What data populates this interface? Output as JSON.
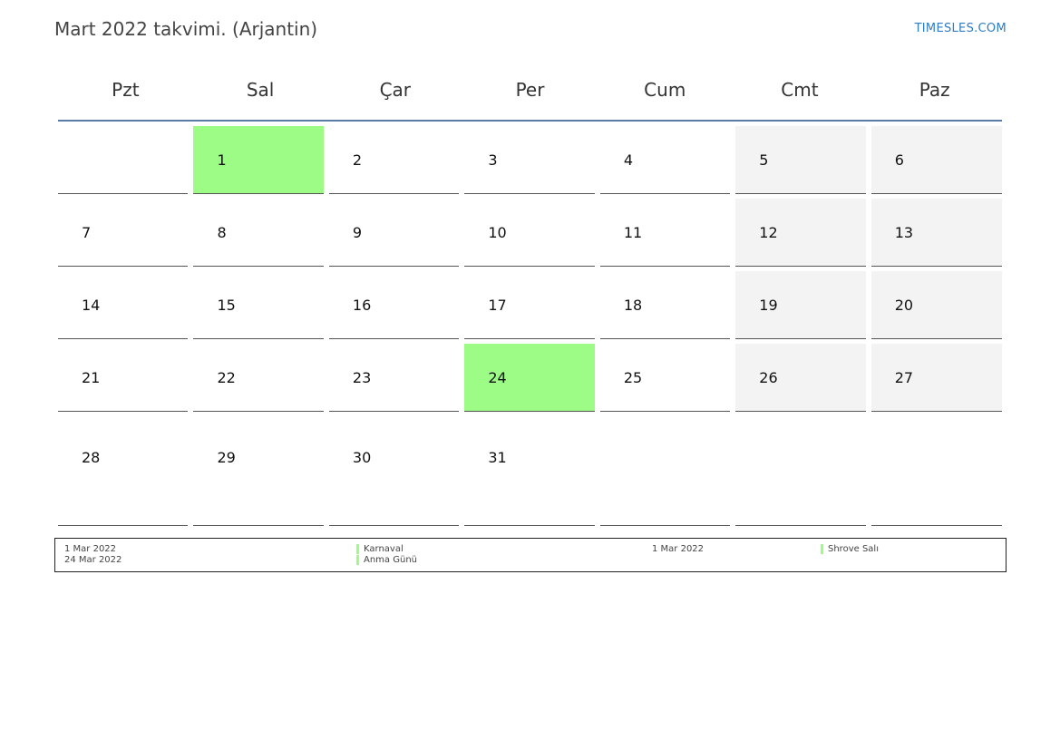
{
  "header": {
    "title": "Mart 2022 takvimi. (Arjantin)",
    "brand": "TIMESLES.COM"
  },
  "colors": {
    "holiday": "#9cfc86",
    "weekend": "#f3f3f3",
    "header_rule": "#5a7ba6",
    "brand": "#2e7cc4"
  },
  "weekdays": [
    "Pzt",
    "Sal",
    "Çar",
    "Per",
    "Cum",
    "Cmt",
    "Paz"
  ],
  "weeks": [
    [
      "",
      "1",
      "2",
      "3",
      "4",
      "5",
      "6"
    ],
    [
      "7",
      "8",
      "9",
      "10",
      "11",
      "12",
      "13"
    ],
    [
      "14",
      "15",
      "16",
      "17",
      "18",
      "19",
      "20"
    ],
    [
      "21",
      "22",
      "23",
      "24",
      "25",
      "26",
      "27"
    ],
    [
      "28",
      "29",
      "30",
      "31",
      "",
      "",
      ""
    ]
  ],
  "holiday_days": [
    "1",
    "24"
  ],
  "legend": {
    "left_dates": [
      "1 Mar 2022",
      "24 Mar 2022"
    ],
    "left_names": [
      "Karnaval",
      "Anma Günü"
    ],
    "right_date": "1 Mar 2022",
    "right_name": "Shrove Salı"
  }
}
